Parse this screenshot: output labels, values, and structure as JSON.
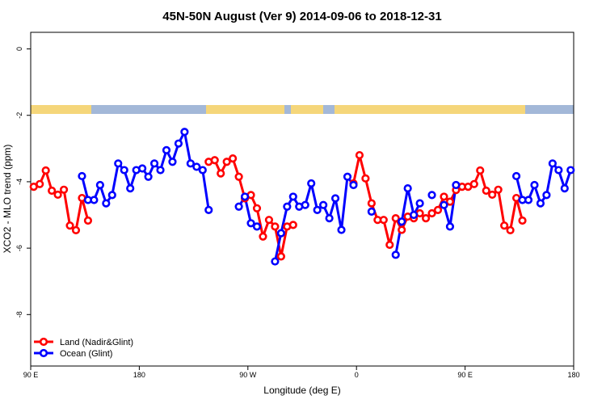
{
  "chart_data": {
    "type": "line",
    "title": "45N-50N August (Ver 9)   2014-09-06 to 2018-12-31",
    "x_label": "Longitude (deg E)",
    "y_label": "XCO2 - MLO trend (ppm)",
    "xlim": [
      90,
      540
    ],
    "ylim": [
      -9.55,
      0.5
    ],
    "xticks": [
      {
        "value": 90,
        "label": "90 E"
      },
      180,
      {
        "value": 270,
        "label": "90 W"
      },
      {
        "value": 360,
        "label": "0"
      },
      {
        "value": 450,
        "label": "90 E"
      },
      {
        "value": 540,
        "label": "180"
      }
    ],
    "yticks": [
      0,
      -2,
      -4,
      -6,
      -8
    ],
    "legend": "bottom-left",
    "x": [
      92.5,
      97.5,
      102.5,
      107.5,
      112.5,
      117.5,
      122.5,
      127.5,
      132.5,
      137.5,
      142.5,
      147.5,
      152.5,
      157.5,
      162.5,
      167.5,
      172.5,
      177.5,
      182.5,
      187.5,
      192.5,
      197.5,
      202.5,
      207.5,
      212.5,
      217.5,
      222.5,
      227.5,
      232.5,
      237.5,
      242.5,
      247.5,
      252.5,
      257.5,
      262.5,
      267.5,
      272.5,
      277.5,
      282.5,
      287.5,
      292.5,
      297.5,
      302.5,
      307.5,
      312.5,
      317.5,
      322.5,
      327.5,
      332.5,
      337.5,
      342.5,
      347.5,
      352.5,
      357.5,
      362.5,
      367.5,
      372.5,
      377.5,
      382.5,
      387.5,
      392.5,
      397.5,
      402.5,
      407.5,
      412.5,
      417.5,
      422.5,
      427.5,
      432.5,
      437.5,
      442.5,
      447.5,
      452.5,
      457.5,
      462.5,
      467.5,
      472.5,
      477.5,
      482.5,
      487.5,
      492.5,
      497.5,
      502.5,
      507.5,
      512.5,
      517.5,
      522.5,
      527.5,
      532.5,
      537.5
    ],
    "series": [
      {
        "name": "Land (Nadir&Glint)",
        "color": "#ff0000",
        "values": [
          -4.15,
          -4.07,
          -3.66,
          -4.27,
          -4.39,
          -4.24,
          -5.32,
          -5.46,
          -4.49,
          -5.17,
          null,
          null,
          null,
          null,
          null,
          null,
          null,
          null,
          null,
          null,
          null,
          null,
          null,
          null,
          null,
          null,
          null,
          null,
          null,
          -3.4,
          -3.35,
          -3.75,
          -3.4,
          -3.3,
          -3.85,
          -4.5,
          -4.4,
          -4.8,
          -5.65,
          -5.15,
          -5.35,
          -6.25,
          -5.35,
          -5.3,
          null,
          null,
          null,
          null,
          null,
          null,
          null,
          null,
          null,
          -4.05,
          -3.2,
          -3.9,
          -4.65,
          -5.15,
          -5.15,
          -5.9,
          -5.1,
          -5.45,
          -5.05,
          -5.1,
          -4.95,
          -5.1,
          -4.95,
          -4.85,
          -4.45,
          -4.6,
          -4.25,
          -4.15,
          -4.15,
          -4.07,
          -3.66,
          -4.27,
          -4.39,
          -4.24,
          -5.32,
          -5.46,
          -4.49,
          -5.17,
          null,
          null,
          null,
          null,
          null,
          null,
          null,
          null
        ]
      },
      {
        "name": "Ocean (Glint)",
        "color": "#0000ff",
        "values": [
          null,
          null,
          null,
          null,
          null,
          null,
          null,
          null,
          -3.83,
          -4.55,
          -4.55,
          -4.1,
          -4.65,
          -4.4,
          -3.45,
          -3.65,
          -4.2,
          -3.65,
          -3.6,
          -3.85,
          -3.45,
          -3.65,
          -3.05,
          -3.4,
          -2.85,
          -2.5,
          -3.45,
          -3.55,
          -3.65,
          -4.85,
          null,
          null,
          null,
          null,
          -4.75,
          -4.45,
          -5.25,
          -5.35,
          null,
          null,
          -6.4,
          -5.55,
          -4.75,
          -4.45,
          -4.75,
          -4.7,
          -4.05,
          -4.85,
          -4.7,
          -5.1,
          -4.5,
          -5.45,
          -3.85,
          -4.1,
          null,
          null,
          -4.9,
          null,
          null,
          null,
          -6.2,
          -5.2,
          -4.2,
          -5.0,
          -4.65,
          null,
          -4.4,
          null,
          -4.7,
          -5.35,
          -4.1,
          null,
          null,
          null,
          null,
          null,
          null,
          null,
          null,
          null,
          -3.83,
          -4.55,
          -4.55,
          -4.1,
          -4.65,
          -4.4,
          -3.45,
          -3.65,
          -4.2,
          -3.65
        ]
      }
    ]
  }
}
